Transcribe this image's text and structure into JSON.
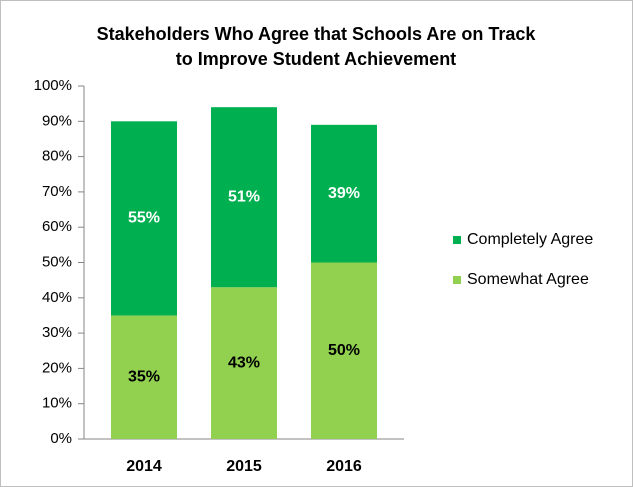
{
  "chart_data": {
    "type": "stacked_bar",
    "title": [
      "Stakeholders Who Agree that Schools Are on Track",
      "to Improve Student Achievement"
    ],
    "categories": [
      "2014",
      "2015",
      "2016"
    ],
    "series": [
      {
        "name": "Somewhat Agree",
        "color": "#92d050",
        "label_color": "#000000",
        "values": [
          35,
          43,
          50
        ],
        "value_labels": [
          "35%",
          "43%",
          "50%"
        ]
      },
      {
        "name": "Completely Agree",
        "color": "#00b050",
        "label_color": "#ffffff",
        "values": [
          55,
          51,
          39
        ],
        "value_labels": [
          "55%",
          "51%",
          "39%"
        ]
      }
    ],
    "ylim": [
      0,
      100
    ],
    "yticks": [
      {
        "value": 0,
        "label": "0%"
      },
      {
        "value": 10,
        "label": "10%"
      },
      {
        "value": 20,
        "label": "20%"
      },
      {
        "value": 30,
        "label": "30%"
      },
      {
        "value": 40,
        "label": "40%"
      },
      {
        "value": 50,
        "label": "50%"
      },
      {
        "value": 60,
        "label": "60%"
      },
      {
        "value": 70,
        "label": "70%"
      },
      {
        "value": 80,
        "label": "80%"
      },
      {
        "value": 90,
        "label": "90%"
      },
      {
        "value": 100,
        "label": "100%"
      }
    ],
    "legend": "right",
    "grid": false
  }
}
